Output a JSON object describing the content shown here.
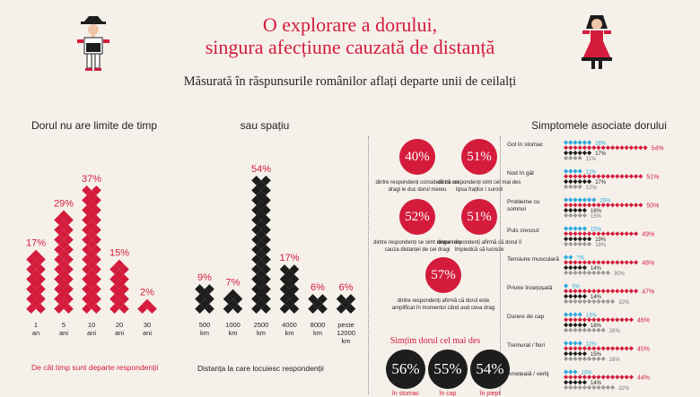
{
  "header": {
    "title_line1": "O explorare a dorului,",
    "title_line2": "singura afecțiune cauzată de distanță",
    "subtitle": "Măsurată în răspunsurile românilor aflați departe unii de ceilalți"
  },
  "colors": {
    "red": "#d41b3c",
    "black": "#1d1d1d",
    "blue": "#2aa8e0",
    "gray": "#9a9a9a",
    "bg": "#f5f1ea"
  },
  "sections": {
    "time_title": "Dorul nu are limite de timp",
    "space_title": "sau spațiu",
    "symptoms_title": "Simptomele asociate dorului",
    "time_note": "De cât timp sunt departe respondenții",
    "space_note": "Distanța la care locuiesc respondenții",
    "where_title": "Simțim dorul cel mai des"
  },
  "stats": [
    {
      "value": "40%",
      "text": "dintre respondenți consideră că cei dragi le duc dorul mereu"
    },
    {
      "value": "51%",
      "text": "dintre respondenți simt cel mai des lipsa fraților / surorii"
    },
    {
      "value": "52%",
      "text": "dintre respondenți se simt singuri din cauza distanței de cei dragi"
    },
    {
      "value": "51%",
      "text": "dintre respondenți afirmă că dorul îi împiedică să lucreze"
    },
    {
      "value": "57%",
      "text": "dintre respondenți afirmă că dorul este amplificat în momentul când aud ceva drag"
    }
  ],
  "where": [
    {
      "value": "56%",
      "label": "în stomac"
    },
    {
      "value": "55%",
      "label": "în cap"
    },
    {
      "value": "54%",
      "label": "în piept"
    }
  ],
  "chart_data": [
    {
      "type": "bar",
      "title": "Dorul nu are limite de timp",
      "xlabel": "De cât timp sunt departe respondenții",
      "categories": [
        "1 an",
        "5 ani",
        "10 ani",
        "20 ani",
        "30 ani"
      ],
      "values": [
        17,
        29,
        37,
        15,
        2
      ],
      "value_labels": [
        "17%",
        "29%",
        "37%",
        "15%",
        "2%"
      ]
    },
    {
      "type": "bar",
      "title": "sau spațiu",
      "xlabel": "Distanța la care locuiesc respondenții",
      "categories": [
        "500 km",
        "1000 km",
        "2500 km",
        "4000 km",
        "8000 km",
        "peste 12000 km"
      ],
      "values": [
        9,
        7,
        54,
        17,
        6,
        6
      ],
      "value_labels": [
        "9%",
        "7%",
        "54%",
        "17%",
        "6%",
        "6%"
      ]
    },
    {
      "type": "bar",
      "title": "Simptomele asociate dorului",
      "categories": [
        "Gol în stomac",
        "Nod în gât",
        "Probleme cu somnul",
        "Puls crescut",
        "Tensiune musculară",
        "Privire încețoșată",
        "Durere de cap",
        "Tremurat / fiori",
        "Amețeală / vertij"
      ],
      "series": [
        {
          "values": [
            18,
            11,
            20,
            15,
            7,
            3,
            13,
            11,
            10
          ]
        },
        {
          "values": [
            54,
            51,
            50,
            49,
            48,
            47,
            46,
            45,
            44
          ]
        },
        {
          "values": [
            17,
            17,
            16,
            19,
            14,
            14,
            16,
            15,
            14
          ]
        },
        {
          "values": [
            11,
            12,
            15,
            18,
            30,
            32,
            26,
            28,
            32
          ]
        }
      ]
    }
  ]
}
